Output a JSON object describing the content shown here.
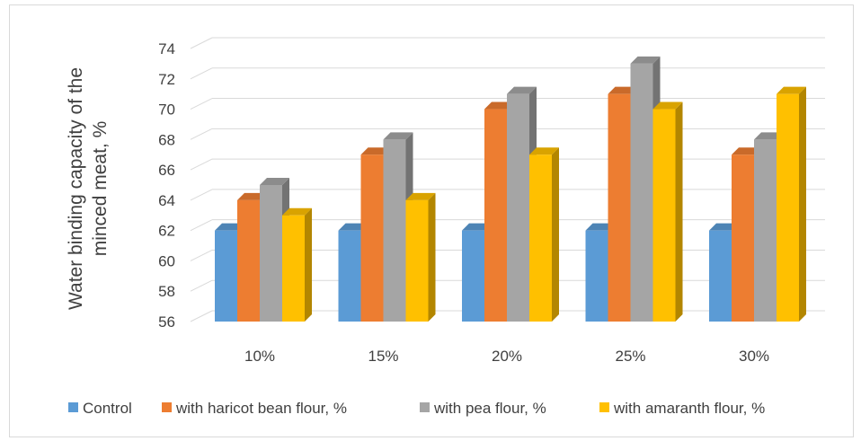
{
  "chart_data": {
    "type": "bar",
    "categories": [
      "10%",
      "15%",
      "20%",
      "25%",
      "30%"
    ],
    "series": [
      {
        "name": "Control",
        "values": [
          62,
          62,
          62,
          62,
          62
        ],
        "color": "#5b9bd5"
      },
      {
        "name": "with haricot bean flour, %",
        "values": [
          64,
          67,
          70,
          71,
          67
        ],
        "color": "#ed7d31"
      },
      {
        "name": "with pea flour, %",
        "values": [
          65,
          68,
          71,
          73,
          68
        ],
        "color": "#a5a5a5"
      },
      {
        "name": "with amaranth flour, %",
        "values": [
          63,
          64,
          67,
          70,
          71
        ],
        "color": "#ffc000"
      }
    ],
    "ylabel_lines": [
      "Water binding capacity of the",
      "minced meat, %"
    ],
    "ylim": [
      56,
      74
    ],
    "yticks": [
      56,
      58,
      60,
      62,
      64,
      66,
      68,
      70,
      72,
      74
    ],
    "grid": true,
    "legend_position": "bottom",
    "style": "3d-clustered-column"
  }
}
